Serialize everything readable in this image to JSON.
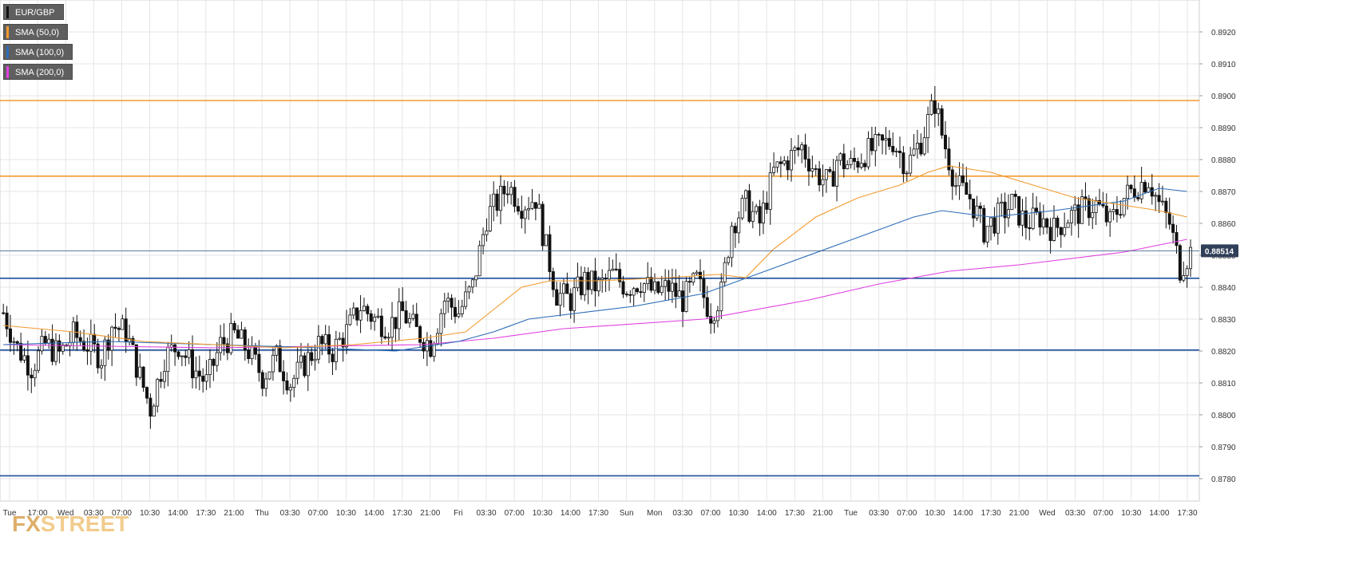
{
  "legend": [
    {
      "label": "EUR/GBP",
      "color": "#111111"
    },
    {
      "label": "SMA (50,0)",
      "color": "#f29a2e"
    },
    {
      "label": "SMA (100,0)",
      "color": "#2b6cb8"
    },
    {
      "label": "SMA (200,0)",
      "color": "#e040e0"
    }
  ],
  "watermark": {
    "part1": "FX",
    "part2": "STREET"
  },
  "price_label": "0.88514",
  "colors": {
    "sma50": "#f29a2e",
    "sma100": "#2b6cb8",
    "sma200": "#e040e0",
    "resistance": "#f29a2e",
    "support": "#1f4e9c",
    "candle": "#111111",
    "grid": "#e6e6e6",
    "price_line": "#2b4e80"
  },
  "chart_data": {
    "type": "candlestick",
    "symbol": "EUR/GBP",
    "ylim": [
      0.8773,
      0.893
    ],
    "y_ticks": [
      "0.8920",
      "0.8910",
      "0.8900",
      "0.8890",
      "0.8880",
      "0.8870",
      "0.8860",
      "0.8850",
      "0.8840",
      "0.8830",
      "0.8820",
      "0.8810",
      "0.8800",
      "0.8790",
      "0.8780"
    ],
    "x_ticks": [
      "Tue",
      "17:00",
      "Wed",
      "03:30",
      "07:00",
      "10:30",
      "14:00",
      "17:30",
      "21:00",
      "Thu",
      "03:30",
      "07:00",
      "10:30",
      "14:00",
      "17:30",
      "21:00",
      "Fri",
      "03:30",
      "07:00",
      "10:30",
      "14:00",
      "17:30",
      "Sun",
      "Mon",
      "03:30",
      "07:00",
      "10:30",
      "14:00",
      "17:30",
      "21:00",
      "Tue",
      "03:30",
      "07:00",
      "10:30",
      "14:00",
      "17:30",
      "21:00",
      "Wed",
      "03:30",
      "07:00",
      "10:30",
      "14:00",
      "17:30"
    ],
    "grid": true,
    "last_price": 0.88514,
    "resistance_levels": [
      0.88985,
      0.88748
    ],
    "support_levels": [
      0.88428,
      0.88203,
      0.87809
    ],
    "price_path": [
      [
        0,
        0.8832
      ],
      [
        4,
        0.8821
      ],
      [
        8,
        0.8815
      ],
      [
        12,
        0.8822
      ],
      [
        16,
        0.8819
      ],
      [
        20,
        0.8825
      ],
      [
        24,
        0.8822
      ],
      [
        28,
        0.8818
      ],
      [
        31,
        0.8828
      ],
      [
        35,
        0.8826
      ],
      [
        39,
        0.8812
      ],
      [
        42,
        0.8802
      ],
      [
        46,
        0.8818
      ],
      [
        50,
        0.8822
      ],
      [
        54,
        0.8815
      ],
      [
        58,
        0.881
      ],
      [
        62,
        0.8822
      ],
      [
        66,
        0.8825
      ],
      [
        70,
        0.882
      ],
      [
        74,
        0.8812
      ],
      [
        78,
        0.8818
      ],
      [
        82,
        0.881
      ],
      [
        86,
        0.8816
      ],
      [
        90,
        0.8822
      ],
      [
        94,
        0.882
      ],
      [
        98,
        0.8826
      ],
      [
        102,
        0.8834
      ],
      [
        106,
        0.883
      ],
      [
        110,
        0.8828
      ],
      [
        114,
        0.8832
      ],
      [
        118,
        0.8826
      ],
      [
        122,
        0.8822
      ],
      [
        126,
        0.8836
      ],
      [
        130,
        0.8832
      ],
      [
        134,
        0.884
      ],
      [
        138,
        0.8862
      ],
      [
        142,
        0.8868
      ],
      [
        144,
        0.8872
      ],
      [
        148,
        0.8866
      ],
      [
        152,
        0.8868
      ],
      [
        155,
        0.8852
      ],
      [
        158,
        0.8838
      ],
      [
        162,
        0.8836
      ],
      [
        166,
        0.8842
      ],
      [
        170,
        0.884
      ],
      [
        174,
        0.8844
      ],
      [
        178,
        0.884
      ],
      [
        182,
        0.8842
      ],
      [
        186,
        0.8838
      ],
      [
        190,
        0.884
      ],
      [
        194,
        0.8836
      ],
      [
        198,
        0.8842
      ],
      [
        202,
        0.8832
      ],
      [
        205,
        0.8838
      ],
      [
        208,
        0.886
      ],
      [
        212,
        0.8866
      ],
      [
        216,
        0.886
      ],
      [
        220,
        0.8876
      ],
      [
        224,
        0.888
      ],
      [
        228,
        0.8884
      ],
      [
        232,
        0.8876
      ],
      [
        236,
        0.8872
      ],
      [
        238,
        0.888
      ],
      [
        242,
        0.8878
      ],
      [
        246,
        0.8882
      ],
      [
        250,
        0.8884
      ],
      [
        254,
        0.8886
      ],
      [
        258,
        0.8878
      ],
      [
        262,
        0.8886
      ],
      [
        266,
        0.8898
      ],
      [
        268,
        0.8888
      ],
      [
        272,
        0.8872
      ],
      [
        276,
        0.8868
      ],
      [
        280,
        0.8858
      ],
      [
        284,
        0.8862
      ],
      [
        288,
        0.8866
      ],
      [
        292,
        0.886
      ],
      [
        296,
        0.8862
      ],
      [
        300,
        0.8858
      ],
      [
        304,
        0.8862
      ],
      [
        308,
        0.8864
      ],
      [
        312,
        0.8866
      ],
      [
        316,
        0.886
      ],
      [
        320,
        0.8868
      ],
      [
        324,
        0.8872
      ],
      [
        327,
        0.8874
      ],
      [
        330,
        0.8866
      ],
      [
        333,
        0.886
      ],
      [
        336,
        0.8846
      ],
      [
        339,
        0.8851
      ]
    ],
    "sma50": [
      [
        0,
        0.8828
      ],
      [
        20,
        0.8826
      ],
      [
        40,
        0.8823
      ],
      [
        60,
        0.8822
      ],
      [
        80,
        0.8821
      ],
      [
        100,
        0.8822
      ],
      [
        120,
        0.8824
      ],
      [
        132,
        0.8826
      ],
      [
        140,
        0.8833
      ],
      [
        148,
        0.884
      ],
      [
        156,
        0.8842
      ],
      [
        170,
        0.8842
      ],
      [
        190,
        0.8843
      ],
      [
        204,
        0.8844
      ],
      [
        212,
        0.8843
      ],
      [
        220,
        0.8852
      ],
      [
        232,
        0.8862
      ],
      [
        244,
        0.8868
      ],
      [
        256,
        0.8872
      ],
      [
        264,
        0.8876
      ],
      [
        270,
        0.8878
      ],
      [
        282,
        0.8876
      ],
      [
        294,
        0.8872
      ],
      [
        306,
        0.8868
      ],
      [
        318,
        0.8866
      ],
      [
        330,
        0.8864
      ],
      [
        338,
        0.8862
      ]
    ],
    "sma100": [
      [
        0,
        0.8822
      ],
      [
        30,
        0.8823
      ],
      [
        60,
        0.8822
      ],
      [
        90,
        0.8821
      ],
      [
        112,
        0.882
      ],
      [
        130,
        0.8823
      ],
      [
        140,
        0.8826
      ],
      [
        150,
        0.883
      ],
      [
        180,
        0.8834
      ],
      [
        200,
        0.8838
      ],
      [
        220,
        0.8846
      ],
      [
        240,
        0.8854
      ],
      [
        260,
        0.8862
      ],
      [
        268,
        0.8864
      ],
      [
        282,
        0.8862
      ],
      [
        300,
        0.8864
      ],
      [
        320,
        0.8867
      ],
      [
        330,
        0.8871
      ],
      [
        338,
        0.887
      ]
    ],
    "sma200": [
      [
        0,
        0.8822
      ],
      [
        60,
        0.8821
      ],
      [
        120,
        0.8822
      ],
      [
        140,
        0.8824
      ],
      [
        160,
        0.8827
      ],
      [
        200,
        0.883
      ],
      [
        230,
        0.8836
      ],
      [
        250,
        0.8841
      ],
      [
        270,
        0.8845
      ],
      [
        290,
        0.8847
      ],
      [
        320,
        0.8851
      ],
      [
        338,
        0.8855
      ]
    ]
  }
}
